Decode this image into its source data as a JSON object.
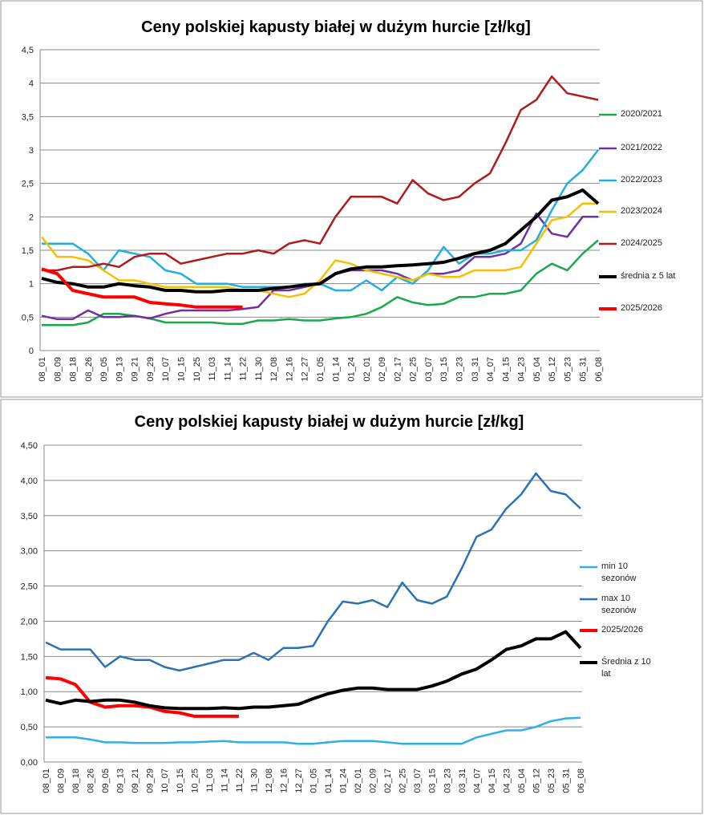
{
  "chart_data": [
    {
      "type": "line",
      "title": "Ceny polskiej kapusty białej w dużym hurcie [zł/kg]",
      "categories": [
        "08_01",
        "08_09",
        "08_18",
        "08_26",
        "09_05",
        "09_13",
        "09_21",
        "09_29",
        "10_07",
        "10_15",
        "10_25",
        "11_03",
        "11_14",
        "11_22",
        "11_30",
        "12_08",
        "12_16",
        "12_27",
        "01_05",
        "01_14",
        "01_24",
        "02_01",
        "02_09",
        "02_17",
        "02_25",
        "03_07",
        "03_15",
        "03_23",
        "03_31",
        "04_07",
        "04_15",
        "04_23",
        "05_04",
        "05_12",
        "05_23",
        "05_31",
        "06_08"
      ],
      "ylim": [
        0,
        4.5
      ],
      "yticks": [
        0,
        {
          "value": 0.5,
          "label": "0,5"
        },
        1,
        {
          "value": 1.5,
          "label": "1,5"
        },
        2,
        {
          "value": 2.5,
          "label": "2,5"
        },
        3,
        {
          "value": 3.5,
          "label": "3,5"
        },
        4,
        {
          "value": 4.5,
          "label": "4,5"
        }
      ],
      "grid": true,
      "legend": "right",
      "series": [
        {
          "name": "2020/2021",
          "color": "#1aa84d",
          "values": [
            0.38,
            0.38,
            0.38,
            0.42,
            0.55,
            0.55,
            0.52,
            0.48,
            0.42,
            0.42,
            0.42,
            0.42,
            0.4,
            0.4,
            0.45,
            0.45,
            0.47,
            0.45,
            0.45,
            0.48,
            0.5,
            0.55,
            0.65,
            0.8,
            0.72,
            0.68,
            0.7,
            0.8,
            0.8,
            0.85,
            0.85,
            0.9,
            1.15,
            1.3,
            1.2,
            1.45,
            1.65
          ]
        },
        {
          "name": "2021/2022",
          "color": "#7030a0",
          "values": [
            0.52,
            0.47,
            0.47,
            0.6,
            0.5,
            0.5,
            0.52,
            0.48,
            0.55,
            0.6,
            0.6,
            0.6,
            0.6,
            0.62,
            0.65,
            0.9,
            0.9,
            0.95,
            1.0,
            1.15,
            1.2,
            1.2,
            1.2,
            1.15,
            1.05,
            1.15,
            1.15,
            1.2,
            1.4,
            1.4,
            1.45,
            1.6,
            2.05,
            1.75,
            1.7,
            2.0,
            2.0
          ]
        },
        {
          "name": "2022/2023",
          "color": "#22aee0",
          "values": [
            1.6,
            1.6,
            1.6,
            1.45,
            1.2,
            1.5,
            1.45,
            1.4,
            1.2,
            1.15,
            1.0,
            1.0,
            1.0,
            0.95,
            0.95,
            0.95,
            0.95,
            1.0,
            1.0,
            0.9,
            0.9,
            1.05,
            0.9,
            1.1,
            1.0,
            1.2,
            1.55,
            1.3,
            1.45,
            1.45,
            1.5,
            1.5,
            1.65,
            2.1,
            2.5,
            2.7,
            3.0
          ]
        },
        {
          "name": "2023/2024",
          "color": "#f5c000",
          "values": [
            1.7,
            1.4,
            1.4,
            1.35,
            1.2,
            1.05,
            1.05,
            1.0,
            0.95,
            0.95,
            0.95,
            0.95,
            0.95,
            0.9,
            0.9,
            0.85,
            0.8,
            0.85,
            1.05,
            1.35,
            1.3,
            1.2,
            1.15,
            1.1,
            1.05,
            1.15,
            1.1,
            1.1,
            1.2,
            1.2,
            1.2,
            1.25,
            1.6,
            1.95,
            2.0,
            2.2,
            2.2
          ]
        },
        {
          "name": "2024/2025",
          "color": "#b01a1a",
          "values": [
            1.2,
            1.2,
            1.25,
            1.25,
            1.3,
            1.25,
            1.4,
            1.45,
            1.45,
            1.3,
            1.35,
            1.4,
            1.45,
            1.45,
            1.5,
            1.45,
            1.6,
            1.65,
            1.6,
            2.0,
            2.3,
            2.3,
            2.3,
            2.2,
            2.55,
            2.35,
            2.25,
            2.3,
            2.5,
            2.65,
            3.1,
            3.6,
            3.75,
            4.1,
            3.85,
            3.8,
            3.75
          ]
        },
        {
          "name": "średnia z 5 lat",
          "color": "#000000",
          "values": [
            1.08,
            1.02,
            1.0,
            0.95,
            0.95,
            1.0,
            0.97,
            0.95,
            0.9,
            0.9,
            0.88,
            0.88,
            0.9,
            0.9,
            0.9,
            0.93,
            0.95,
            0.98,
            1.0,
            1.15,
            1.22,
            1.25,
            1.25,
            1.27,
            1.28,
            1.3,
            1.32,
            1.38,
            1.45,
            1.5,
            1.6,
            1.8,
            2.0,
            2.25,
            2.3,
            2.4,
            2.2
          ]
        },
        {
          "name": "2025/2026",
          "color": "#ff0000",
          "values": [
            1.22,
            1.15,
            0.9,
            0.85,
            0.8,
            0.8,
            0.8,
            0.72,
            0.7,
            0.68,
            0.65,
            0.65,
            0.65,
            0.65,
            null,
            null,
            null,
            null,
            null,
            null,
            null,
            null,
            null,
            null,
            null,
            null,
            null,
            null,
            null,
            null,
            null,
            null,
            null,
            null,
            null,
            null,
            null
          ]
        }
      ]
    },
    {
      "type": "line",
      "title": "Ceny polskiej kapusty białej w dużym hurcie [zł/kg]",
      "categories": [
        "08_01",
        "08_09",
        "08_18",
        "08_26",
        "09_05",
        "09_13",
        "09_21",
        "09_29",
        "10_07",
        "10_15",
        "10_25",
        "11_03",
        "11_14",
        "11_22",
        "11_30",
        "12_08",
        "12_16",
        "12_27",
        "01_05",
        "01_14",
        "01_24",
        "02_01",
        "02_09",
        "02_17",
        "02_25",
        "03_07",
        "03_15",
        "03_23",
        "03_31",
        "04_07",
        "04_15",
        "04_23",
        "05_04",
        "05_12",
        "05_23",
        "05_31",
        "06_08"
      ],
      "ylim": [
        0,
        4.5
      ],
      "yticks": [
        {
          "value": 0,
          "label": "0,00"
        },
        {
          "value": 0.5,
          "label": "0,50"
        },
        {
          "value": 1,
          "label": "1,00"
        },
        {
          "value": 1.5,
          "label": "1,50"
        },
        {
          "value": 2,
          "label": "2,00"
        },
        {
          "value": 2.5,
          "label": "2,50"
        },
        {
          "value": 3,
          "label": "3,00"
        },
        {
          "value": 3.5,
          "label": "3,50"
        },
        {
          "value": 4,
          "label": "4,00"
        },
        {
          "value": 4.5,
          "label": "4,50"
        }
      ],
      "grid": true,
      "legend": "right",
      "series": [
        {
          "name": "min 10 sezonów",
          "color": "#2eb0e4",
          "values": [
            0.35,
            0.35,
            0.35,
            0.32,
            0.28,
            0.28,
            0.27,
            0.27,
            0.27,
            0.28,
            0.28,
            0.29,
            0.3,
            0.28,
            0.28,
            0.28,
            0.28,
            0.26,
            0.26,
            0.28,
            0.3,
            0.3,
            0.3,
            0.28,
            0.26,
            0.26,
            0.26,
            0.26,
            0.26,
            0.35,
            0.4,
            0.45,
            0.45,
            0.5,
            0.58,
            0.62,
            0.63
          ]
        },
        {
          "name": "max 10 sezonów",
          "color": "#2a72b5",
          "values": [
            1.7,
            1.6,
            1.6,
            1.6,
            1.35,
            1.5,
            1.45,
            1.45,
            1.35,
            1.3,
            1.35,
            1.4,
            1.45,
            1.45,
            1.55,
            1.45,
            1.62,
            1.62,
            1.65,
            2.0,
            2.28,
            2.25,
            2.3,
            2.2,
            2.55,
            2.3,
            2.25,
            2.35,
            2.75,
            3.2,
            3.3,
            3.6,
            3.8,
            4.1,
            3.85,
            3.8,
            3.6
          ]
        },
        {
          "name": "2025/2026",
          "color": "#ff0000",
          "values": [
            1.2,
            1.18,
            1.1,
            0.85,
            0.78,
            0.8,
            0.8,
            0.78,
            0.72,
            0.7,
            0.65,
            0.65,
            0.65,
            0.65,
            null,
            null,
            null,
            null,
            null,
            null,
            null,
            null,
            null,
            null,
            null,
            null,
            null,
            null,
            null,
            null,
            null,
            null,
            null,
            null,
            null,
            null,
            null
          ]
        },
        {
          "name": "Średnia z 10 lat",
          "color": "#000000",
          "values": [
            0.88,
            0.83,
            0.88,
            0.86,
            0.88,
            0.88,
            0.85,
            0.8,
            0.77,
            0.76,
            0.76,
            0.76,
            0.77,
            0.76,
            0.78,
            0.78,
            0.8,
            0.82,
            0.9,
            0.97,
            1.02,
            1.05,
            1.05,
            1.03,
            1.03,
            1.03,
            1.08,
            1.15,
            1.25,
            1.32,
            1.45,
            1.6,
            1.65,
            1.75,
            1.75,
            1.85,
            1.62
          ]
        }
      ]
    }
  ]
}
